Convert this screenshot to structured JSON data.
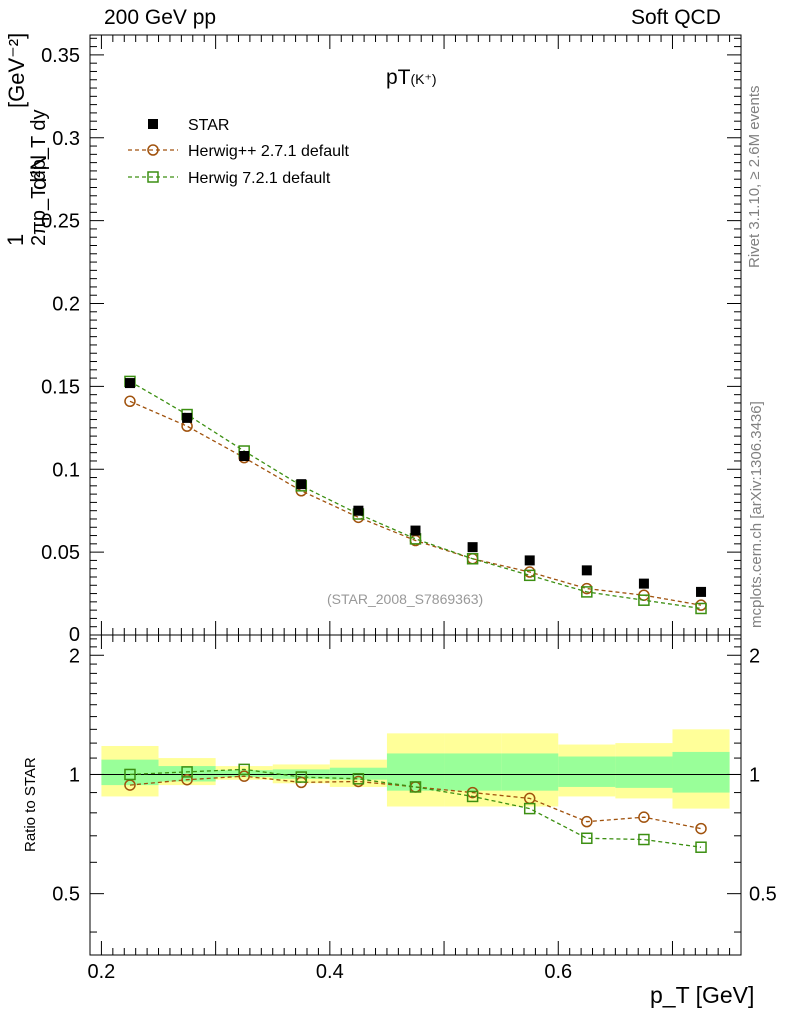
{
  "header": {
    "energy": "200 GeV pp",
    "category": "Soft QCD"
  },
  "side": {
    "rivet": "Rivet 3.1.10, ≥ 2.6M events",
    "mcplots": "mcplots.cern.ch [arXiv:1306.3436]"
  },
  "main_panel": {
    "title_main": "pT",
    "title_sub": "(K⁺)",
    "analysis_id": "(STAR_2008_S7869363)",
    "ylabel_left": "1",
    "ylabel_frac_num": "d²N",
    "ylabel_frac_den": "2πp_T dp_T dy",
    "ylabel_unit": "[GeV⁻²]"
  },
  "ratio_panel": {
    "ylabel": "Ratio to STAR"
  },
  "xaxis": {
    "label": "p_T [GeV]"
  },
  "colors": {
    "data": "#000000",
    "herwigpp": "#a0520d",
    "herwig7": "#3c8f12",
    "band_inner": "#99ff99",
    "band_outer": "#ffff99"
  },
  "chart_data": [
    {
      "type": "scatter",
      "title": "pT(K⁺)",
      "xlabel": "p_T [GeV]",
      "ylabel": "1/(2π p_T) d²N/(dp_T dy) [GeV⁻²]",
      "xlim": [
        0.19,
        0.76
      ],
      "ylim": [
        0,
        0.362
      ],
      "yticks": [
        0,
        0.05,
        0.1,
        0.15,
        0.2,
        0.25,
        0.3,
        0.35
      ],
      "ytick_labels": [
        "0",
        "0.05",
        "0.1",
        "0.15",
        "0.2",
        "0.25",
        "0.3",
        "0.35"
      ],
      "legend_position": "top-left",
      "series": [
        {
          "name": "STAR",
          "marker": "filled-square",
          "x": [
            0.225,
            0.275,
            0.325,
            0.375,
            0.425,
            0.475,
            0.525,
            0.575,
            0.625,
            0.675,
            0.725
          ],
          "y": [
            0.152,
            0.131,
            0.108,
            0.091,
            0.075,
            0.063,
            0.053,
            0.045,
            0.039,
            0.031,
            0.026
          ]
        },
        {
          "name": "Herwig++ 2.7.1 default",
          "marker": "open-circle",
          "x": [
            0.225,
            0.275,
            0.325,
            0.375,
            0.425,
            0.475,
            0.525,
            0.575,
            0.625,
            0.675,
            0.725
          ],
          "y": [
            0.141,
            0.126,
            0.107,
            0.087,
            0.071,
            0.057,
            0.046,
            0.038,
            0.028,
            0.024,
            0.018
          ]
        },
        {
          "name": "Herwig 7.2.1 default",
          "marker": "open-square",
          "x": [
            0.225,
            0.275,
            0.325,
            0.375,
            0.425,
            0.475,
            0.525,
            0.575,
            0.625,
            0.675,
            0.725
          ],
          "y": [
            0.153,
            0.133,
            0.111,
            0.09,
            0.073,
            0.058,
            0.046,
            0.036,
            0.026,
            0.021,
            0.016
          ]
        }
      ]
    },
    {
      "type": "scatter",
      "ylabel": "Ratio to STAR",
      "xlabel": "p_T [GeV]",
      "xlim": [
        0.19,
        0.76
      ],
      "ylim": [
        0.35,
        2.25
      ],
      "log_y": true,
      "yticks": [
        0.5,
        1,
        2
      ],
      "ytick_labels": [
        "0.5",
        "1",
        "2"
      ],
      "xticks": [
        0.2,
        0.4,
        0.6
      ],
      "xtick_labels": [
        "0.2",
        "0.4",
        "0.6"
      ],
      "bins": [
        [
          0.2,
          0.25
        ],
        [
          0.25,
          0.3
        ],
        [
          0.3,
          0.35
        ],
        [
          0.35,
          0.4
        ],
        [
          0.4,
          0.45
        ],
        [
          0.45,
          0.5
        ],
        [
          0.5,
          0.55
        ],
        [
          0.55,
          0.6
        ],
        [
          0.6,
          0.65
        ],
        [
          0.65,
          0.7
        ],
        [
          0.7,
          0.75
        ]
      ],
      "band_outer": [
        [
          0.88,
          1.18
        ],
        [
          0.94,
          1.1
        ],
        [
          0.97,
          1.05
        ],
        [
          0.95,
          1.06
        ],
        [
          0.93,
          1.09
        ],
        [
          0.83,
          1.27
        ],
        [
          0.83,
          1.27
        ],
        [
          0.83,
          1.27
        ],
        [
          0.88,
          1.19
        ],
        [
          0.87,
          1.2
        ],
        [
          0.82,
          1.3
        ]
      ],
      "band_inner": [
        [
          0.94,
          1.09
        ],
        [
          0.96,
          1.05
        ],
        [
          0.985,
          1.025
        ],
        [
          0.975,
          1.03
        ],
        [
          0.97,
          1.04
        ],
        [
          0.91,
          1.13
        ],
        [
          0.91,
          1.13
        ],
        [
          0.91,
          1.13
        ],
        [
          0.93,
          1.11
        ],
        [
          0.925,
          1.11
        ],
        [
          0.9,
          1.14
        ]
      ],
      "series": [
        {
          "name": "Herwig++ 2.7.1 default",
          "marker": "open-circle",
          "x": [
            0.225,
            0.275,
            0.325,
            0.375,
            0.425,
            0.475,
            0.525,
            0.575,
            0.625,
            0.675,
            0.725
          ],
          "y": [
            0.94,
            0.97,
            0.99,
            0.955,
            0.96,
            0.93,
            0.9,
            0.87,
            0.76,
            0.78,
            0.73
          ]
        },
        {
          "name": "Herwig 7.2.1 default",
          "marker": "open-square",
          "x": [
            0.225,
            0.275,
            0.325,
            0.375,
            0.425,
            0.475,
            0.525,
            0.575,
            0.625,
            0.675,
            0.725
          ],
          "y": [
            1.0,
            1.015,
            1.03,
            0.985,
            0.975,
            0.93,
            0.88,
            0.82,
            0.69,
            0.685,
            0.655
          ]
        }
      ]
    }
  ]
}
